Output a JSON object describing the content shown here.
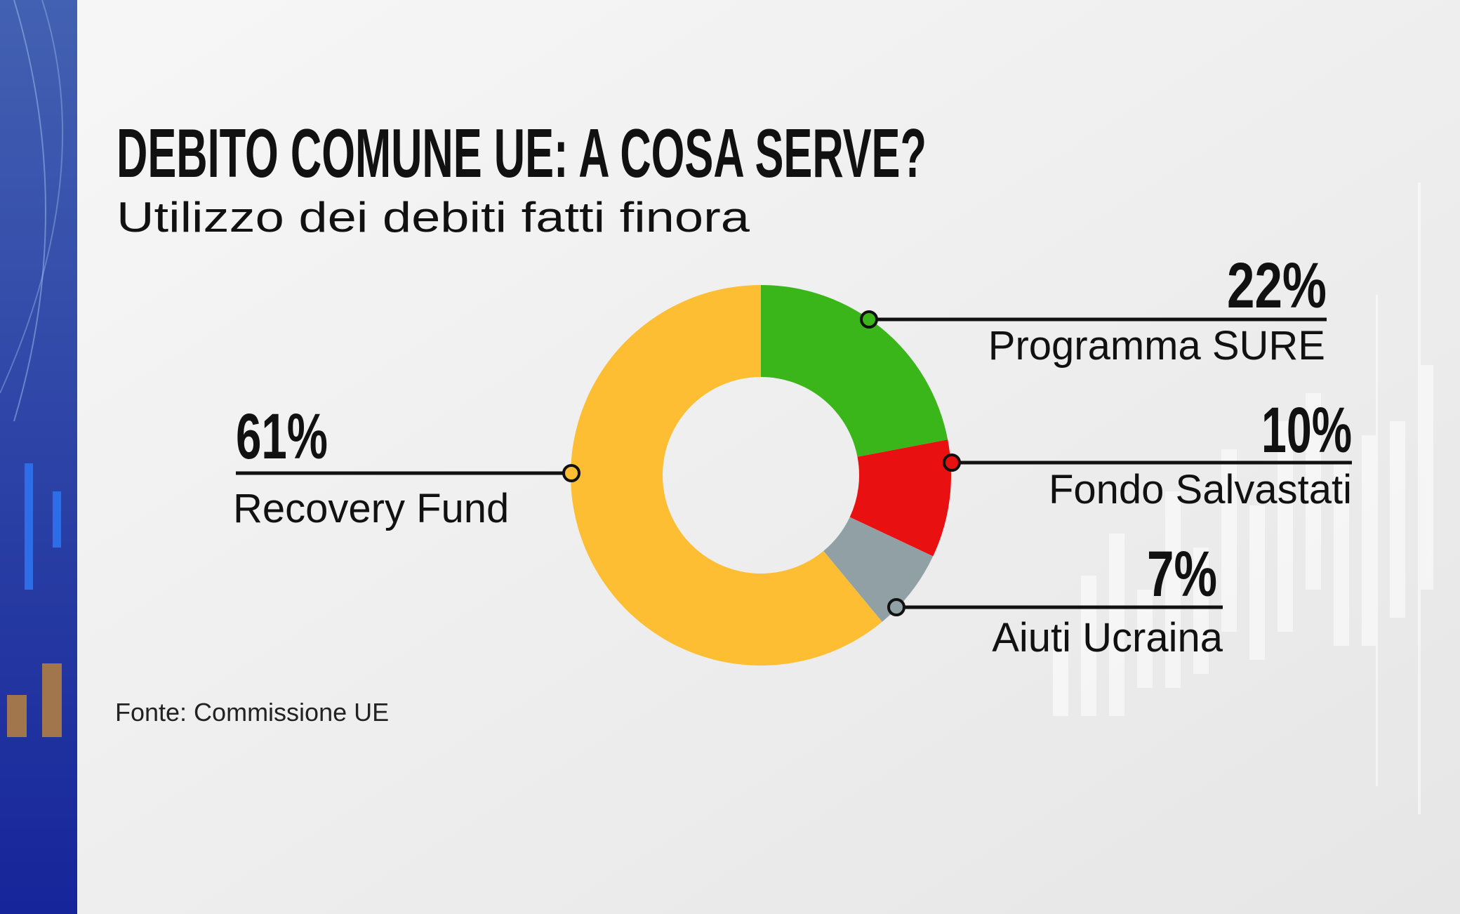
{
  "title": "DEBITO COMUNE UE: A COSA SERVE?",
  "subtitle": "Utilizzo dei debiti fatti finora",
  "source": "Fonte: Commissione UE",
  "chart_data": {
    "type": "pie",
    "variant": "donut",
    "title": "DEBITO COMUNE UE: A COSA SERVE?",
    "subtitle": "Utilizzo dei debiti fatti finora",
    "slices": [
      {
        "label": "Programma SURE",
        "value": 22,
        "display": "22%",
        "color": "#3BB61A"
      },
      {
        "label": "Fondo Salvastati",
        "value": 10,
        "display": "10%",
        "color": "#E81010"
      },
      {
        "label": "Aiuti Ucraina",
        "value": 7,
        "display": "7%",
        "color": "#90A0A5"
      },
      {
        "label": "Recovery Fund",
        "value": 61,
        "display": "61%",
        "color": "#FDBE33"
      }
    ],
    "start": "top",
    "direction": "clockwise"
  },
  "colors": {
    "sidebar": "#2E4AA6",
    "background": "#EFEFEF",
    "text": "#111111"
  }
}
